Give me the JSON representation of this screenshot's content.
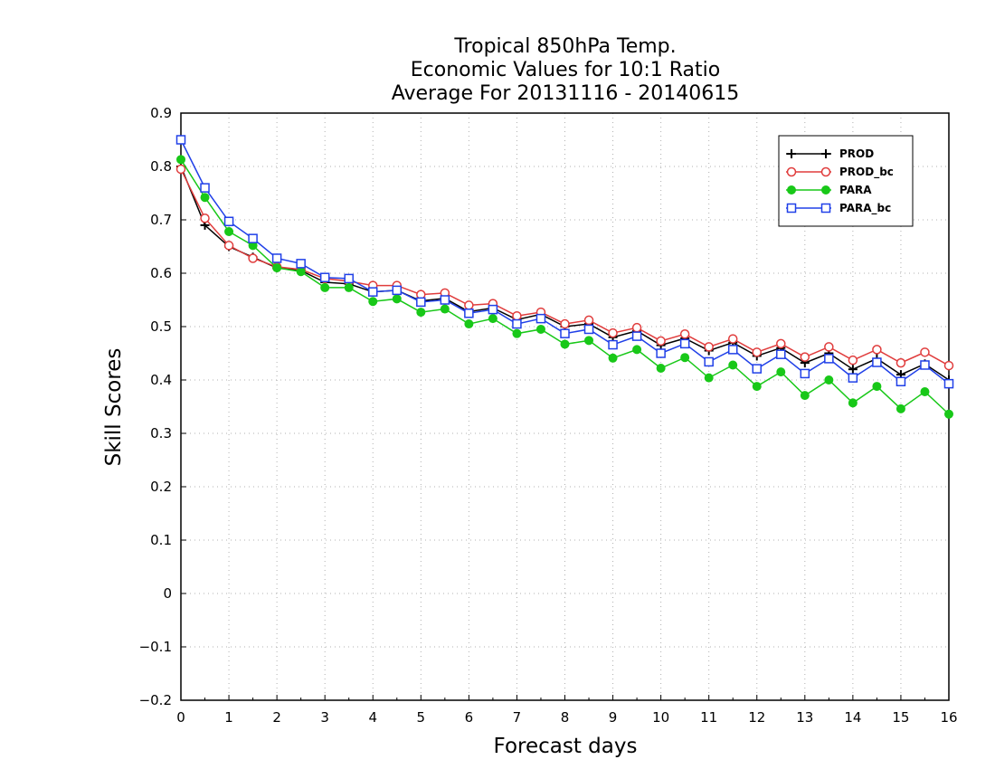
{
  "chart_data": {
    "type": "line",
    "title": [
      "Tropical 850hPa Temp.",
      "Economic Values for 10:1 Ratio",
      "Average For 20131116 - 20140615"
    ],
    "xlabel": "Forecast days",
    "ylabel": "Skill Scores",
    "xlim": [
      0,
      16
    ],
    "ylim": [
      -0.2,
      0.9
    ],
    "xticks": [
      "0",
      "1",
      "2",
      "3",
      "4",
      "5",
      "6",
      "7",
      "8",
      "9",
      "10",
      "11",
      "12",
      "13",
      "14",
      "15",
      "16"
    ],
    "yticks": [
      "−0.2",
      "−0.1",
      "0",
      "0.1",
      "0.2",
      "0.3",
      "0.4",
      "0.5",
      "0.6",
      "0.7",
      "0.8",
      "0.9"
    ],
    "grid": true,
    "legend_position": "top-right",
    "x": [
      0,
      0.5,
      1,
      1.5,
      2,
      2.5,
      3,
      3.5,
      4,
      4.5,
      5,
      5.5,
      6,
      6.5,
      7,
      7.5,
      8,
      8.5,
      9,
      9.5,
      10,
      10.5,
      11,
      11.5,
      12,
      12.5,
      13,
      13.5,
      14,
      14.5,
      15,
      15.5,
      16
    ],
    "series": [
      {
        "name": "PROD",
        "color": "#000000",
        "marker": "plus",
        "values": [
          0.8,
          0.69,
          0.65,
          0.63,
          0.61,
          0.605,
          0.583,
          0.58,
          0.565,
          0.568,
          0.548,
          0.553,
          0.528,
          0.535,
          0.513,
          0.523,
          0.5,
          0.505,
          0.48,
          0.492,
          0.465,
          0.478,
          0.455,
          0.47,
          0.445,
          0.46,
          0.432,
          0.45,
          0.42,
          0.44,
          0.41,
          0.43,
          0.4
        ]
      },
      {
        "name": "PROD_bc",
        "color": "#e03c3c",
        "marker": "circle-open",
        "values": [
          0.795,
          0.703,
          0.652,
          0.628,
          0.612,
          0.607,
          0.59,
          0.585,
          0.577,
          0.577,
          0.56,
          0.563,
          0.54,
          0.543,
          0.52,
          0.527,
          0.505,
          0.512,
          0.488,
          0.498,
          0.473,
          0.486,
          0.462,
          0.477,
          0.452,
          0.468,
          0.443,
          0.462,
          0.437,
          0.457,
          0.432,
          0.452,
          0.427
        ]
      },
      {
        "name": "PARA",
        "color": "#18c818",
        "marker": "circle-filled",
        "values": [
          0.813,
          0.742,
          0.678,
          0.652,
          0.61,
          0.603,
          0.573,
          0.573,
          0.547,
          0.552,
          0.527,
          0.533,
          0.505,
          0.515,
          0.487,
          0.495,
          0.467,
          0.474,
          0.441,
          0.457,
          0.422,
          0.442,
          0.404,
          0.428,
          0.388,
          0.415,
          0.371,
          0.4,
          0.357,
          0.388,
          0.346,
          0.378,
          0.336
        ]
      },
      {
        "name": "PARA_bc",
        "color": "#2040e8",
        "marker": "square-open",
        "values": [
          0.85,
          0.76,
          0.697,
          0.665,
          0.628,
          0.618,
          0.592,
          0.59,
          0.565,
          0.568,
          0.546,
          0.55,
          0.525,
          0.532,
          0.505,
          0.515,
          0.487,
          0.495,
          0.466,
          0.482,
          0.45,
          0.468,
          0.434,
          0.457,
          0.421,
          0.448,
          0.412,
          0.44,
          0.404,
          0.433,
          0.397,
          0.428,
          0.393
        ]
      }
    ]
  }
}
